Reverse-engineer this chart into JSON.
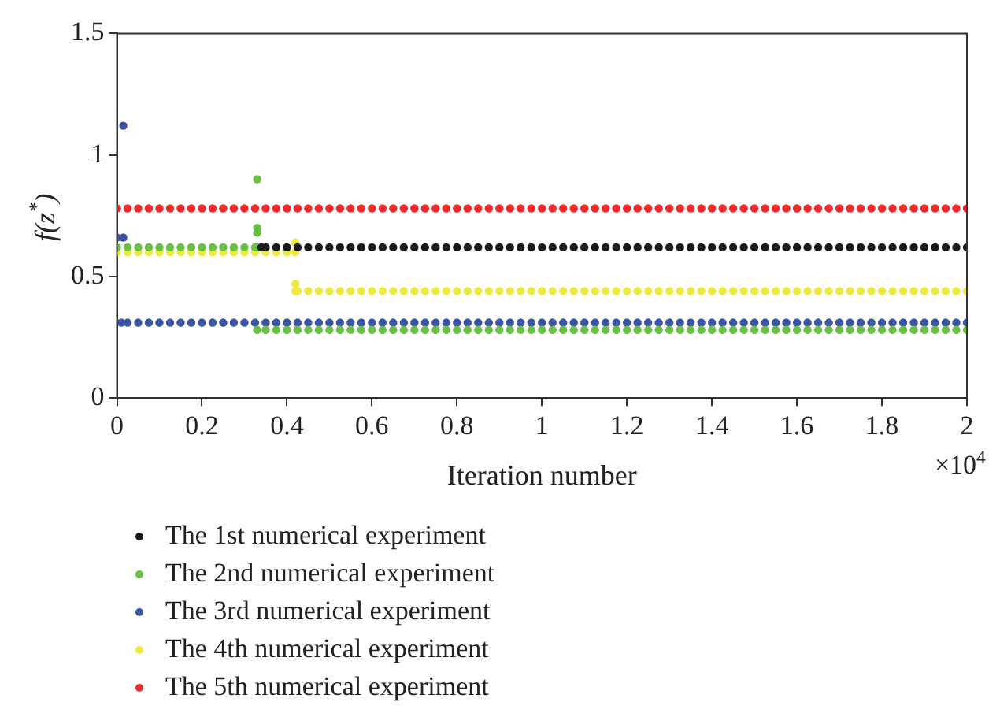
{
  "chart_data": {
    "type": "scatter",
    "xlabel": "Iteration number",
    "ylabel": "f(z$^{*}$)",
    "annotations": [
      "×10$^{4}$"
    ],
    "xlim": [
      0,
      2
    ],
    "xticks": [
      0,
      0.2,
      0.4,
      0.6,
      0.8,
      1,
      1.2,
      1.4,
      1.6,
      1.8,
      2
    ],
    "ylim": [
      0,
      1.5
    ],
    "yticks": [
      0,
      0.5,
      1,
      1.5
    ],
    "grid": false,
    "legend": "bottom",
    "marker": "circle",
    "series": [
      {
        "name": "The 1st numerical experiment",
        "color": "#1a1a1a",
        "x": [
          0.34,
          0.35,
          0.375,
          0.4,
          0.425,
          0.45,
          0.475,
          0.5,
          0.525,
          0.55,
          0.575,
          0.6,
          0.625,
          0.65,
          0.675,
          0.7,
          0.725,
          0.75,
          0.775,
          0.8,
          0.825,
          0.85,
          0.875,
          0.9,
          0.925,
          0.95,
          0.975,
          1,
          1.025,
          1.05,
          1.075,
          1.1,
          1.125,
          1.15,
          1.175,
          1.2,
          1.225,
          1.25,
          1.275,
          1.3,
          1.325,
          1.35,
          1.375,
          1.4,
          1.425,
          1.45,
          1.475,
          1.5,
          1.525,
          1.55,
          1.575,
          1.6,
          1.625,
          1.65,
          1.675,
          1.7,
          1.725,
          1.75,
          1.775,
          1.8,
          1.825,
          1.85,
          1.875,
          1.9,
          1.925,
          1.95,
          1.975,
          2
        ],
        "values": [
          0.62,
          0.62,
          0.62,
          0.62,
          0.62,
          0.62,
          0.62,
          0.62,
          0.62,
          0.62,
          0.62,
          0.62,
          0.62,
          0.62,
          0.62,
          0.62,
          0.62,
          0.62,
          0.62,
          0.62,
          0.62,
          0.62,
          0.62,
          0.62,
          0.62,
          0.62,
          0.62,
          0.62,
          0.62,
          0.62,
          0.62,
          0.62,
          0.62,
          0.62,
          0.62,
          0.62,
          0.62,
          0.62,
          0.62,
          0.62,
          0.62,
          0.62,
          0.62,
          0.62,
          0.62,
          0.62,
          0.62,
          0.62,
          0.62,
          0.62,
          0.62,
          0.62,
          0.62,
          0.62,
          0.62,
          0.62,
          0.62,
          0.62,
          0.62,
          0.62,
          0.62,
          0.62,
          0.62,
          0.62,
          0.62,
          0.62,
          0.62,
          0.62
        ]
      },
      {
        "name": "The 2nd numerical experiment",
        "color": "#6abf45",
        "x": [
          0,
          0.025,
          0.05,
          0.075,
          0.1,
          0.125,
          0.15,
          0.175,
          0.2,
          0.225,
          0.25,
          0.275,
          0.3,
          0.325,
          0.33,
          0.33,
          0.33,
          0.33,
          0.33,
          0.35,
          0.375,
          0.4,
          0.425,
          0.45,
          0.475,
          0.5,
          0.525,
          0.55,
          0.575,
          0.6,
          0.625,
          0.65,
          0.675,
          0.7,
          0.725,
          0.75,
          0.775,
          0.8,
          0.825,
          0.85,
          0.875,
          0.9,
          0.925,
          0.95,
          0.975,
          1,
          1.025,
          1.05,
          1.075,
          1.1,
          1.125,
          1.15,
          1.175,
          1.2,
          1.225,
          1.25,
          1.275,
          1.3,
          1.325,
          1.35,
          1.375,
          1.4,
          1.425,
          1.45,
          1.475,
          1.5,
          1.525,
          1.55,
          1.575,
          1.6,
          1.625,
          1.65,
          1.675,
          1.7,
          1.725,
          1.75,
          1.775,
          1.8,
          1.825,
          1.85,
          1.875,
          1.9,
          1.925,
          1.95,
          1.975,
          2
        ],
        "values": [
          0.62,
          0.62,
          0.62,
          0.62,
          0.62,
          0.62,
          0.62,
          0.62,
          0.62,
          0.62,
          0.62,
          0.62,
          0.62,
          0.62,
          0.62,
          0.9,
          0.7,
          0.68,
          0.28,
          0.28,
          0.28,
          0.28,
          0.28,
          0.28,
          0.28,
          0.28,
          0.28,
          0.28,
          0.28,
          0.28,
          0.28,
          0.28,
          0.28,
          0.28,
          0.28,
          0.28,
          0.28,
          0.28,
          0.28,
          0.28,
          0.28,
          0.28,
          0.28,
          0.28,
          0.28,
          0.28,
          0.28,
          0.28,
          0.28,
          0.28,
          0.28,
          0.28,
          0.28,
          0.28,
          0.28,
          0.28,
          0.28,
          0.28,
          0.28,
          0.28,
          0.28,
          0.28,
          0.28,
          0.28,
          0.28,
          0.28,
          0.28,
          0.28,
          0.28,
          0.28,
          0.28,
          0.28,
          0.28,
          0.28,
          0.28,
          0.28,
          0.28,
          0.28,
          0.28,
          0.28,
          0.28,
          0.28,
          0.28,
          0.28,
          0.28,
          0.28
        ]
      },
      {
        "name": "The 3rd numerical experiment",
        "color": "#3a55a4",
        "x": [
          0.015,
          0,
          0.015,
          0.01,
          0.025,
          0.05,
          0.075,
          0.1,
          0.125,
          0.15,
          0.175,
          0.2,
          0.225,
          0.25,
          0.275,
          0.3,
          0.325,
          0.35,
          0.375,
          0.4,
          0.425,
          0.45,
          0.475,
          0.5,
          0.525,
          0.55,
          0.575,
          0.6,
          0.625,
          0.65,
          0.675,
          0.7,
          0.725,
          0.75,
          0.775,
          0.8,
          0.825,
          0.85,
          0.875,
          0.9,
          0.925,
          0.95,
          0.975,
          1,
          1.025,
          1.05,
          1.075,
          1.1,
          1.125,
          1.15,
          1.175,
          1.2,
          1.225,
          1.25,
          1.275,
          1.3,
          1.325,
          1.35,
          1.375,
          1.4,
          1.425,
          1.45,
          1.475,
          1.5,
          1.525,
          1.55,
          1.575,
          1.6,
          1.625,
          1.65,
          1.675,
          1.7,
          1.725,
          1.75,
          1.775,
          1.8,
          1.825,
          1.85,
          1.875,
          1.9,
          1.925,
          1.95,
          1.975,
          2
        ],
        "values": [
          1.12,
          0.66,
          0.66,
          0.31,
          0.31,
          0.31,
          0.31,
          0.31,
          0.31,
          0.31,
          0.31,
          0.31,
          0.31,
          0.31,
          0.31,
          0.31,
          0.31,
          0.31,
          0.31,
          0.31,
          0.31,
          0.31,
          0.31,
          0.31,
          0.31,
          0.31,
          0.31,
          0.31,
          0.31,
          0.31,
          0.31,
          0.31,
          0.31,
          0.31,
          0.31,
          0.31,
          0.31,
          0.31,
          0.31,
          0.31,
          0.31,
          0.31,
          0.31,
          0.31,
          0.31,
          0.31,
          0.31,
          0.31,
          0.31,
          0.31,
          0.31,
          0.31,
          0.31,
          0.31,
          0.31,
          0.31,
          0.31,
          0.31,
          0.31,
          0.31,
          0.31,
          0.31,
          0.31,
          0.31,
          0.31,
          0.31,
          0.31,
          0.31,
          0.31,
          0.31,
          0.31,
          0.31,
          0.31,
          0.31,
          0.31,
          0.31,
          0.31,
          0.31,
          0.31,
          0.31,
          0.31,
          0.31,
          0.31,
          0.31
        ]
      },
      {
        "name": "The 4th numerical experiment",
        "color": "#eeea3a",
        "x": [
          0,
          0.025,
          0.05,
          0.075,
          0.1,
          0.125,
          0.15,
          0.175,
          0.2,
          0.225,
          0.25,
          0.275,
          0.3,
          0.325,
          0.35,
          0.375,
          0.4,
          0.42,
          0.42,
          0.42,
          0.42,
          0.425,
          0.45,
          0.475,
          0.5,
          0.525,
          0.55,
          0.575,
          0.6,
          0.625,
          0.65,
          0.675,
          0.7,
          0.725,
          0.75,
          0.775,
          0.8,
          0.825,
          0.85,
          0.875,
          0.9,
          0.925,
          0.95,
          0.975,
          1,
          1.025,
          1.05,
          1.075,
          1.1,
          1.125,
          1.15,
          1.175,
          1.2,
          1.225,
          1.25,
          1.275,
          1.3,
          1.325,
          1.35,
          1.375,
          1.4,
          1.425,
          1.45,
          1.475,
          1.5,
          1.525,
          1.55,
          1.575,
          1.6,
          1.625,
          1.65,
          1.675,
          1.7,
          1.725,
          1.75,
          1.775,
          1.8,
          1.825,
          1.85,
          1.875,
          1.9,
          1.925,
          1.95,
          1.975,
          2
        ],
        "values": [
          0.6,
          0.6,
          0.6,
          0.6,
          0.6,
          0.6,
          0.6,
          0.6,
          0.6,
          0.6,
          0.6,
          0.6,
          0.6,
          0.6,
          0.6,
          0.6,
          0.6,
          0.6,
          0.64,
          0.47,
          0.44,
          0.44,
          0.44,
          0.44,
          0.44,
          0.44,
          0.44,
          0.44,
          0.44,
          0.44,
          0.44,
          0.44,
          0.44,
          0.44,
          0.44,
          0.44,
          0.44,
          0.44,
          0.44,
          0.44,
          0.44,
          0.44,
          0.44,
          0.44,
          0.44,
          0.44,
          0.44,
          0.44,
          0.44,
          0.44,
          0.44,
          0.44,
          0.44,
          0.44,
          0.44,
          0.44,
          0.44,
          0.44,
          0.44,
          0.44,
          0.44,
          0.44,
          0.44,
          0.44,
          0.44,
          0.44,
          0.44,
          0.44,
          0.44,
          0.44,
          0.44,
          0.44,
          0.44,
          0.44,
          0.44,
          0.44,
          0.44,
          0.44,
          0.44,
          0.44,
          0.44,
          0.44,
          0.44,
          0.44,
          0.44
        ]
      },
      {
        "name": "The 5th numerical experiment",
        "color": "#ee2a2a",
        "x": [
          0,
          0.025,
          0.05,
          0.075,
          0.1,
          0.125,
          0.15,
          0.175,
          0.2,
          0.225,
          0.25,
          0.275,
          0.3,
          0.325,
          0.35,
          0.375,
          0.4,
          0.425,
          0.45,
          0.475,
          0.5,
          0.525,
          0.55,
          0.575,
          0.6,
          0.625,
          0.65,
          0.675,
          0.7,
          0.725,
          0.75,
          0.775,
          0.8,
          0.825,
          0.85,
          0.875,
          0.9,
          0.925,
          0.95,
          0.975,
          1,
          1.025,
          1.05,
          1.075,
          1.1,
          1.125,
          1.15,
          1.175,
          1.2,
          1.225,
          1.25,
          1.275,
          1.3,
          1.325,
          1.35,
          1.375,
          1.4,
          1.425,
          1.45,
          1.475,
          1.5,
          1.525,
          1.55,
          1.575,
          1.6,
          1.625,
          1.65,
          1.675,
          1.7,
          1.725,
          1.75,
          1.775,
          1.8,
          1.825,
          1.85,
          1.875,
          1.9,
          1.925,
          1.95,
          1.975,
          2
        ],
        "values": [
          0.78,
          0.78,
          0.78,
          0.78,
          0.78,
          0.78,
          0.78,
          0.78,
          0.78,
          0.78,
          0.78,
          0.78,
          0.78,
          0.78,
          0.78,
          0.78,
          0.78,
          0.78,
          0.78,
          0.78,
          0.78,
          0.78,
          0.78,
          0.78,
          0.78,
          0.78,
          0.78,
          0.78,
          0.78,
          0.78,
          0.78,
          0.78,
          0.78,
          0.78,
          0.78,
          0.78,
          0.78,
          0.78,
          0.78,
          0.78,
          0.78,
          0.78,
          0.78,
          0.78,
          0.78,
          0.78,
          0.78,
          0.78,
          0.78,
          0.78,
          0.78,
          0.78,
          0.78,
          0.78,
          0.78,
          0.78,
          0.78,
          0.78,
          0.78,
          0.78,
          0.78,
          0.78,
          0.78,
          0.78,
          0.78,
          0.78,
          0.78,
          0.78,
          0.78,
          0.78,
          0.78,
          0.78,
          0.78,
          0.78,
          0.78,
          0.78,
          0.78,
          0.78,
          0.78,
          0.78,
          0.78
        ]
      }
    ]
  }
}
